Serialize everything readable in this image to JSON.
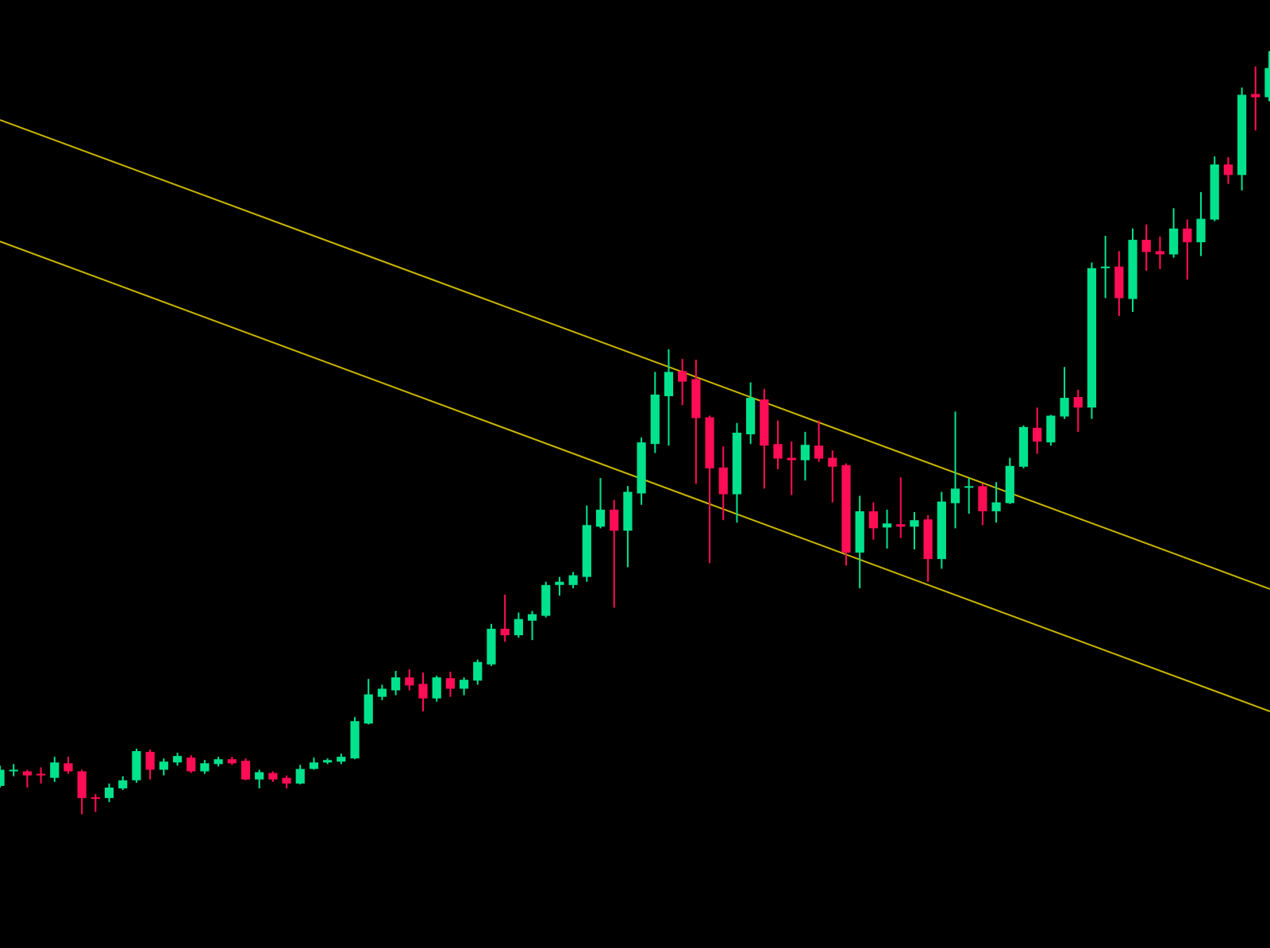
{
  "chart_data": {
    "type": "candlestick",
    "background": "#000000",
    "up_color": "#00e28c",
    "down_color": "#ff0d55",
    "xlim": [
      0,
      93.06
    ],
    "ylim": [
      0,
      1170
    ],
    "open": [
      200,
      218,
      218,
      215,
      210,
      228,
      218,
      186,
      185,
      197,
      207,
      242,
      220,
      229,
      235,
      218,
      227,
      233,
      231,
      208,
      216,
      210,
      203,
      221,
      229,
      230,
      234,
      277,
      310,
      318,
      334,
      326,
      308,
      333,
      320,
      330,
      350,
      394,
      386,
      404,
      410,
      448,
      448,
      458,
      520,
      541,
      515,
      561,
      622,
      681,
      712,
      702,
      655,
      593,
      560,
      634,
      677,
      622,
      605,
      602,
      620,
      605,
      596,
      488,
      539,
      519,
      523,
      520,
      529,
      480,
      549,
      568,
      570,
      539,
      549,
      594,
      642,
      624,
      656,
      680,
      667,
      839,
      841,
      801,
      874,
      860,
      856,
      888,
      871,
      899,
      967,
      954,
      1054,
      1050
    ],
    "high": [
      225,
      227,
      220,
      223,
      236,
      236,
      220,
      190,
      203,
      212,
      246,
      245,
      234,
      241,
      238,
      232,
      236,
      236,
      234,
      220,
      218,
      213,
      226,
      235,
      234,
      240,
      285,
      332,
      325,
      342,
      344,
      340,
      336,
      341,
      334,
      356,
      400,
      436,
      414,
      416,
      452,
      458,
      464,
      546,
      580,
      553,
      570,
      630,
      711,
      739,
      727,
      726,
      657,
      619,
      648,
      698,
      690,
      651,
      625,
      637,
      651,
      614,
      598,
      558,
      550,
      541,
      581,
      538,
      534,
      563,
      662,
      580,
      573,
      575,
      605,
      645,
      667,
      658,
      717,
      689,
      846,
      879,
      860,
      888,
      893,
      878,
      913,
      899,
      933,
      977,
      976,
      1062,
      1088,
      1107
    ],
    "low": [
      198,
      212,
      198,
      203,
      205,
      215,
      165,
      168,
      180,
      195,
      204,
      208,
      213,
      225,
      216,
      215,
      224,
      226,
      207,
      197,
      205,
      197,
      202,
      220,
      227,
      227,
      233,
      276,
      306,
      312,
      318,
      292,
      304,
      310,
      312,
      325,
      348,
      378,
      383,
      380,
      408,
      435,
      444,
      452,
      518,
      420,
      470,
      547,
      611,
      620,
      670,
      573,
      475,
      528,
      525,
      622,
      567,
      591,
      559,
      577,
      600,
      550,
      472,
      444,
      504,
      493,
      506,
      492,
      452,
      468,
      518,
      536,
      522,
      525,
      548,
      592,
      610,
      620,
      653,
      637,
      653,
      802,
      780,
      785,
      836,
      838,
      852,
      825,
      854,
      897,
      943,
      935,
      1009,
      1045
    ],
    "close": [
      220,
      220,
      213,
      213,
      229,
      218,
      185,
      184,
      198,
      207,
      243,
      220,
      230,
      237,
      218,
      228,
      233,
      228,
      208,
      217,
      208,
      203,
      221,
      229,
      232,
      236,
      280,
      313,
      320,
      334,
      324,
      308,
      334,
      320,
      331,
      353,
      394,
      386,
      406,
      412,
      448,
      452,
      460,
      522,
      541,
      515,
      563,
      624,
      683,
      711,
      699,
      654,
      592,
      560,
      636,
      679,
      620,
      604,
      602,
      621,
      604,
      594,
      488,
      539,
      518,
      524,
      520,
      528,
      480,
      551,
      567,
      570,
      539,
      550,
      595,
      643,
      625,
      657,
      679,
      667,
      839,
      841,
      802,
      874,
      859,
      856,
      888,
      871,
      900,
      967,
      954,
      1053,
      1050,
      1086
    ],
    "lines": [
      {
        "color": "#c8b400",
        "x": [
          0,
          93.06
        ],
        "y": [
          1022,
          443
        ]
      },
      {
        "color": "#c8b400",
        "x": [
          0,
          93.06
        ],
        "y": [
          872,
          292
        ]
      }
    ]
  }
}
